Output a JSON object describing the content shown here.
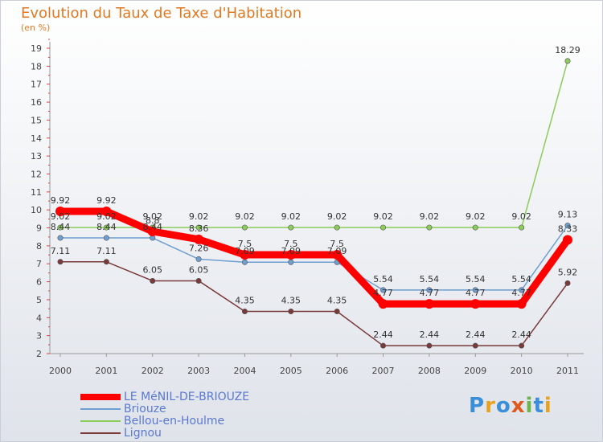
{
  "chart_data": {
    "type": "line",
    "title": "Evolution du Taux de Taxe d'Habitation",
    "subtitle": "(en %)",
    "xlabel": "",
    "ylabel": "",
    "x": [
      "2000",
      "2001",
      "2002",
      "2003",
      "2004",
      "2005",
      "2006",
      "2007",
      "2008",
      "2009",
      "2010",
      "2011"
    ],
    "ylim": [
      2,
      19
    ],
    "yticks": [
      "2",
      "3",
      "4",
      "5",
      "6",
      "7",
      "8",
      "9",
      "10",
      "11",
      "12",
      "13",
      "14",
      "15",
      "16",
      "17",
      "18",
      "19"
    ],
    "series": [
      {
        "name": "LE MéNIL-DE-BRIOUZE",
        "color": "#ff0000",
        "values": [
          9.92,
          9.92,
          8.8,
          8.36,
          7.5,
          7.5,
          7.5,
          4.77,
          4.77,
          4.77,
          4.77,
          8.33
        ],
        "labels": [
          "9.92",
          "9.92",
          "8.8",
          "8.36",
          "7.5",
          "7.5",
          "7.5",
          "4.77",
          "4.77",
          "4.77",
          "4.77",
          "8.33"
        ]
      },
      {
        "name": "Briouze",
        "color": "#6f9fd0",
        "values": [
          8.44,
          8.44,
          8.44,
          7.26,
          7.09,
          7.09,
          7.09,
          5.54,
          5.54,
          5.54,
          5.54,
          9.13
        ],
        "labels": [
          "8.44",
          "8.44",
          "8.44",
          "7.26",
          "7.09",
          "7.09",
          "7.09",
          "5.54",
          "5.54",
          "5.54",
          "5.54",
          "9.13"
        ]
      },
      {
        "name": "Bellou-en-Houlme",
        "color": "#8ccc5a",
        "values": [
          9.02,
          9.02,
          9.02,
          9.02,
          9.02,
          9.02,
          9.02,
          9.02,
          9.02,
          9.02,
          9.02,
          18.29
        ],
        "labels": [
          "9.02",
          "9.02",
          "9.02",
          "9.02",
          "9.02",
          "9.02",
          "9.02",
          "9.02",
          "9.02",
          "9.02",
          "9.02",
          "18.29"
        ]
      },
      {
        "name": "Lignou",
        "color": "#7a3a3a",
        "values": [
          7.11,
          7.11,
          6.05,
          6.05,
          4.35,
          4.35,
          4.35,
          2.44,
          2.44,
          2.44,
          2.44,
          5.92
        ],
        "labels": [
          "7.11",
          "7.11",
          "6.05",
          "6.05",
          "4.35",
          "4.35",
          "4.35",
          "2.44",
          "2.44",
          "2.44",
          "2.44",
          "5.92"
        ]
      }
    ],
    "legend_position": "bottom-left"
  },
  "logo": {
    "letters": [
      "P",
      "r",
      "o",
      "x",
      "i",
      "t",
      "i"
    ],
    "colors": [
      "#3a8fd8",
      "#e8a21e",
      "#3a8fd8",
      "#e05a1e",
      "#6ab64a",
      "#3a8fd8",
      "#e8a21e"
    ]
  }
}
